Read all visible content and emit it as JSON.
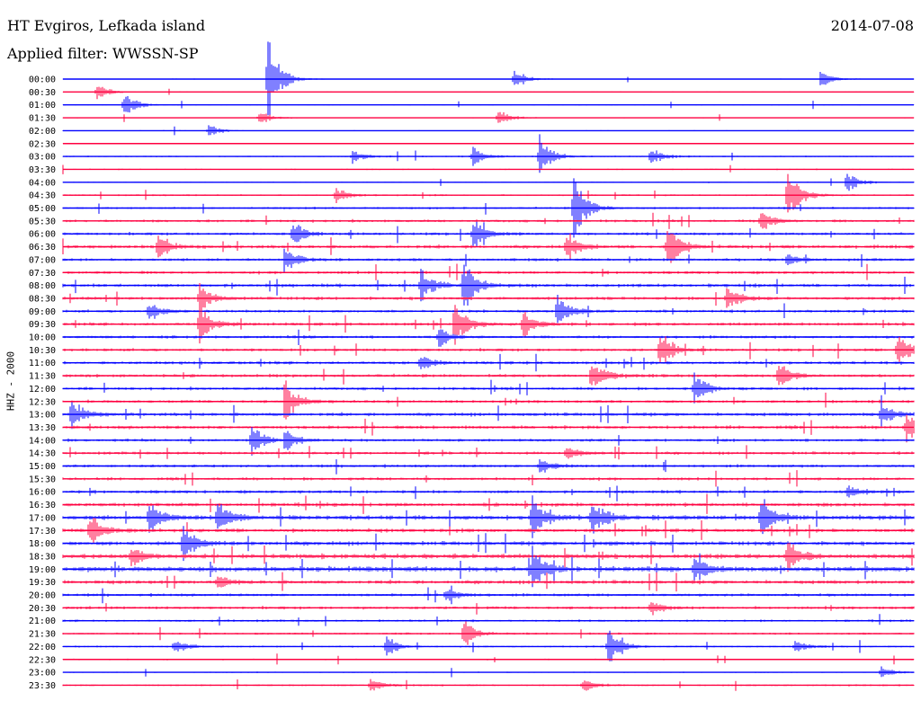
{
  "header": {
    "station": "HT Evgiros, Lefkada island",
    "filter": "Applied filter: WWSSN-SP",
    "date": "2014-07-08",
    "channel": "HHZ - 2000"
  },
  "colors": {
    "blue": "#0000ff",
    "red": "#ff0040",
    "background": "#ffffff",
    "text": "#000000"
  },
  "chart_data": {
    "type": "line",
    "title": "HT Evgiros, Lefkada island",
    "ylabel": "HHZ - 2000",
    "trace_colors": [
      "blue",
      "red"
    ],
    "time_labels": [
      "00:00",
      "00:30",
      "01:00",
      "01:30",
      "02:00",
      "02:30",
      "03:00",
      "03:30",
      "04:00",
      "04:30",
      "05:00",
      "05:30",
      "06:00",
      "06:30",
      "07:00",
      "07:30",
      "08:00",
      "08:30",
      "09:00",
      "09:30",
      "10:00",
      "10:30",
      "11:00",
      "11:30",
      "12:00",
      "12:30",
      "13:00",
      "13:30",
      "14:00",
      "14:30",
      "15:00",
      "15:30",
      "16:00",
      "16:30",
      "17:00",
      "17:30",
      "18:00",
      "18:30",
      "19:00",
      "19:30",
      "20:00",
      "20:30",
      "21:00",
      "21:30",
      "22:00",
      "22:30",
      "23:00",
      "23:30"
    ],
    "noise_levels": [
      0.3,
      0.3,
      0.3,
      0.3,
      0.3,
      0.2,
      0.5,
      0.4,
      0.4,
      0.6,
      0.7,
      0.9,
      1.0,
      1.2,
      1.0,
      1.0,
      1.2,
      1.1,
      1.0,
      1.1,
      1.0,
      1.0,
      1.1,
      1.1,
      1.0,
      1.0,
      1.2,
      1.2,
      1.0,
      1.0,
      1.0,
      1.0,
      1.1,
      1.3,
      1.6,
      1.3,
      1.4,
      1.7,
      1.8,
      1.3,
      1.0,
      1.0,
      0.8,
      0.7,
      0.6,
      0.5,
      0.4,
      0.6
    ],
    "events": [
      {
        "row": 0,
        "t": 0.24,
        "amp": 60
      },
      {
        "row": 0,
        "t": 0.53,
        "amp": 12
      },
      {
        "row": 0,
        "t": 0.89,
        "amp": 10
      },
      {
        "row": 1,
        "t": 0.04,
        "amp": 10
      },
      {
        "row": 2,
        "t": 0.07,
        "amp": 18
      },
      {
        "row": 3,
        "t": 0.23,
        "amp": 8
      },
      {
        "row": 3,
        "t": 0.51,
        "amp": 10
      },
      {
        "row": 4,
        "t": 0.17,
        "amp": 8
      },
      {
        "row": 6,
        "t": 0.34,
        "amp": 8
      },
      {
        "row": 6,
        "t": 0.48,
        "amp": 14
      },
      {
        "row": 6,
        "t": 0.56,
        "amp": 22
      },
      {
        "row": 6,
        "t": 0.69,
        "amp": 12
      },
      {
        "row": 8,
        "t": 0.92,
        "amp": 14
      },
      {
        "row": 9,
        "t": 0.32,
        "amp": 10
      },
      {
        "row": 9,
        "t": 0.85,
        "amp": 40
      },
      {
        "row": 10,
        "t": 0.6,
        "amp": 46
      },
      {
        "row": 11,
        "t": 0.82,
        "amp": 12
      },
      {
        "row": 12,
        "t": 0.27,
        "amp": 14
      },
      {
        "row": 12,
        "t": 0.48,
        "amp": 20
      },
      {
        "row": 13,
        "t": 0.11,
        "amp": 16
      },
      {
        "row": 13,
        "t": 0.59,
        "amp": 20
      },
      {
        "row": 13,
        "t": 0.71,
        "amp": 30
      },
      {
        "row": 14,
        "t": 0.26,
        "amp": 16
      },
      {
        "row": 14,
        "t": 0.85,
        "amp": 10
      },
      {
        "row": 16,
        "t": 0.42,
        "amp": 22
      },
      {
        "row": 16,
        "t": 0.47,
        "amp": 36
      },
      {
        "row": 17,
        "t": 0.16,
        "amp": 16
      },
      {
        "row": 17,
        "t": 0.78,
        "amp": 14
      },
      {
        "row": 18,
        "t": 0.1,
        "amp": 12
      },
      {
        "row": 18,
        "t": 0.58,
        "amp": 24
      },
      {
        "row": 19,
        "t": 0.16,
        "amp": 24
      },
      {
        "row": 19,
        "t": 0.46,
        "amp": 30
      },
      {
        "row": 19,
        "t": 0.54,
        "amp": 18
      },
      {
        "row": 20,
        "t": 0.44,
        "amp": 12
      },
      {
        "row": 21,
        "t": 0.7,
        "amp": 24
      },
      {
        "row": 21,
        "t": 0.98,
        "amp": 22
      },
      {
        "row": 22,
        "t": 0.42,
        "amp": 10
      },
      {
        "row": 23,
        "t": 0.62,
        "amp": 24
      },
      {
        "row": 23,
        "t": 0.84,
        "amp": 16
      },
      {
        "row": 24,
        "t": 0.74,
        "amp": 22
      },
      {
        "row": 25,
        "t": 0.26,
        "amp": 26
      },
      {
        "row": 26,
        "t": 0.01,
        "amp": 18
      },
      {
        "row": 26,
        "t": 0.96,
        "amp": 14
      },
      {
        "row": 27,
        "t": 0.99,
        "amp": 20
      },
      {
        "row": 28,
        "t": 0.22,
        "amp": 24
      },
      {
        "row": 28,
        "t": 0.26,
        "amp": 12
      },
      {
        "row": 29,
        "t": 0.59,
        "amp": 10
      },
      {
        "row": 30,
        "t": 0.56,
        "amp": 10
      },
      {
        "row": 32,
        "t": 0.92,
        "amp": 8
      },
      {
        "row": 34,
        "t": 0.1,
        "amp": 22
      },
      {
        "row": 34,
        "t": 0.18,
        "amp": 26
      },
      {
        "row": 34,
        "t": 0.55,
        "amp": 26
      },
      {
        "row": 34,
        "t": 0.62,
        "amp": 26
      },
      {
        "row": 34,
        "t": 0.82,
        "amp": 24
      },
      {
        "row": 35,
        "t": 0.03,
        "amp": 22
      },
      {
        "row": 36,
        "t": 0.14,
        "amp": 22
      },
      {
        "row": 37,
        "t": 0.08,
        "amp": 12
      },
      {
        "row": 37,
        "t": 0.85,
        "amp": 22
      },
      {
        "row": 38,
        "t": 0.55,
        "amp": 26
      },
      {
        "row": 38,
        "t": 0.74,
        "amp": 20
      },
      {
        "row": 39,
        "t": 0.18,
        "amp": 10
      },
      {
        "row": 40,
        "t": 0.45,
        "amp": 10
      },
      {
        "row": 41,
        "t": 0.69,
        "amp": 10
      },
      {
        "row": 43,
        "t": 0.47,
        "amp": 20
      },
      {
        "row": 44,
        "t": 0.13,
        "amp": 10
      },
      {
        "row": 44,
        "t": 0.38,
        "amp": 12
      },
      {
        "row": 44,
        "t": 0.64,
        "amp": 24
      },
      {
        "row": 44,
        "t": 0.86,
        "amp": 8
      },
      {
        "row": 46,
        "t": 0.96,
        "amp": 8
      },
      {
        "row": 47,
        "t": 0.36,
        "amp": 8
      },
      {
        "row": 47,
        "t": 0.61,
        "amp": 8
      }
    ]
  }
}
